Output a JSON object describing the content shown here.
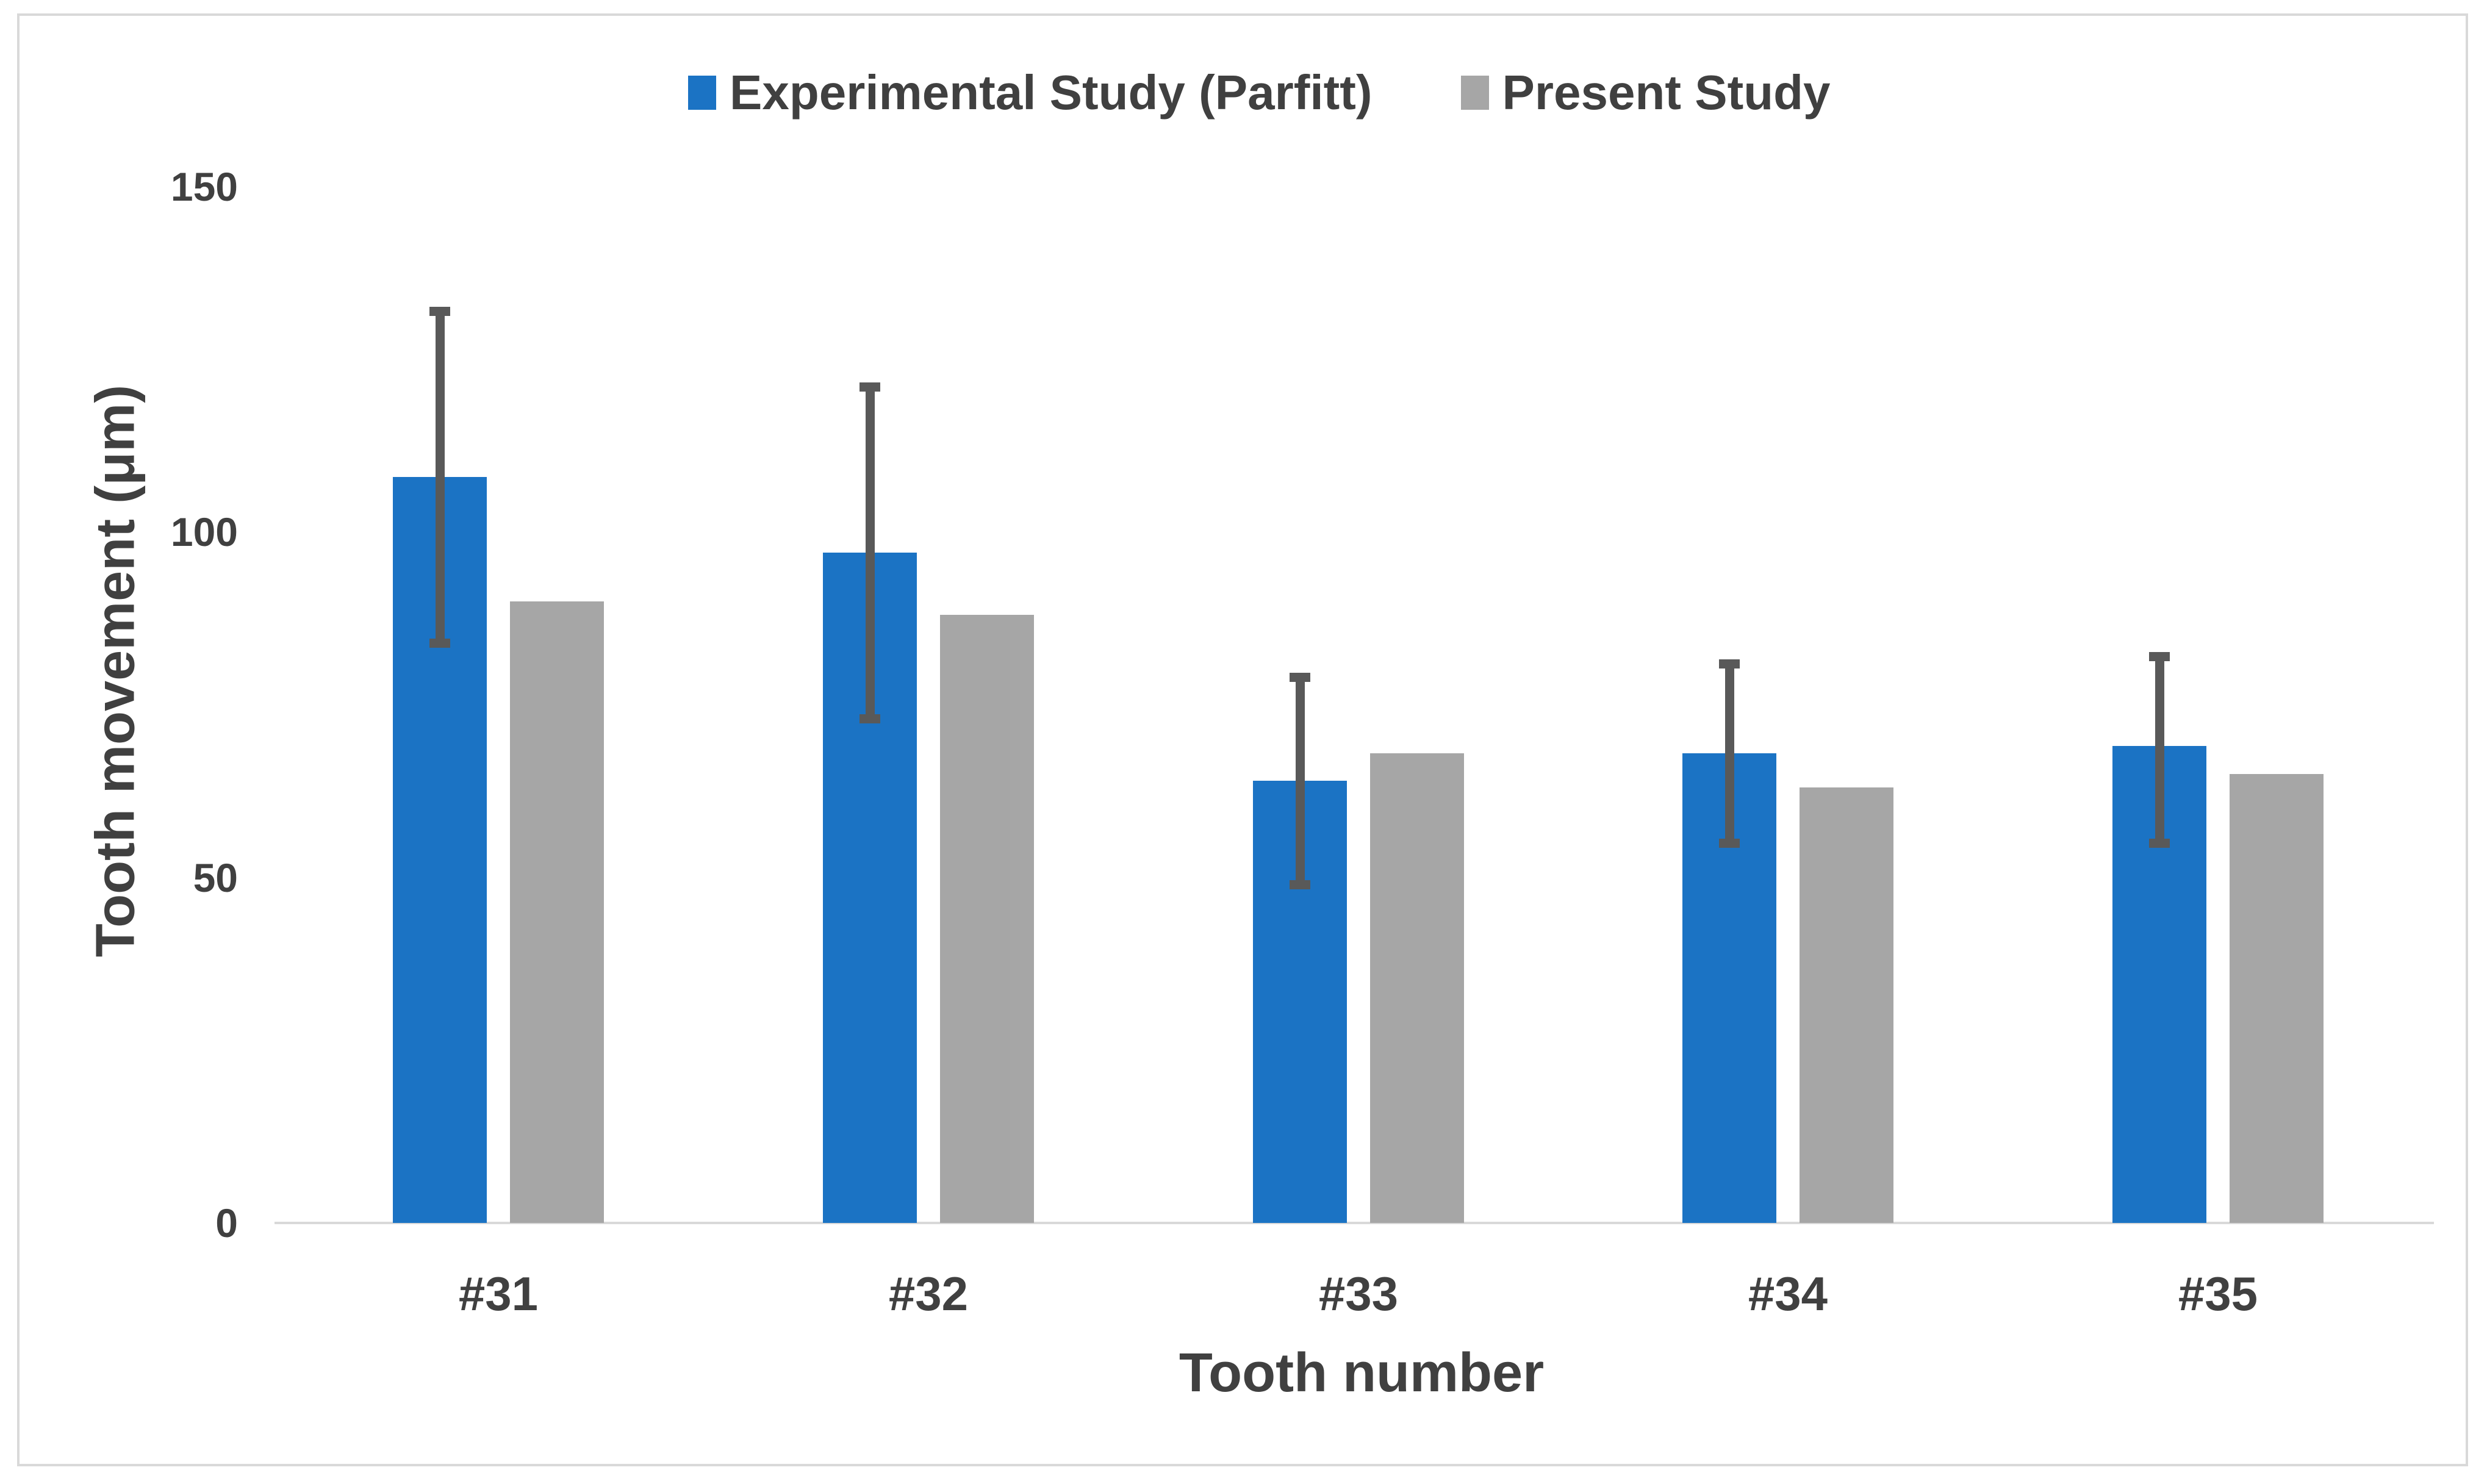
{
  "chart_data": {
    "type": "bar",
    "title": "",
    "categories": [
      "#31",
      "#32",
      "#33",
      "#34",
      "#35"
    ],
    "series": [
      {
        "name": "Experimental Study (Parfitt)",
        "color": "#1B73C4",
        "values": [
          108,
          97,
          64,
          68,
          69
        ],
        "error_low": [
          84,
          73,
          49,
          55,
          55
        ],
        "error_high": [
          132,
          121,
          79,
          81,
          82
        ]
      },
      {
        "name": "Present Study",
        "color": "#A6A6A6",
        "values": [
          90,
          88,
          68,
          63,
          65
        ]
      }
    ],
    "xlabel": "Tooth number",
    "ylabel": "Tooth movement (μm)",
    "yticks": [
      0,
      50,
      100,
      150
    ],
    "ylim": [
      0,
      160
    ],
    "grid": false,
    "legend_position": "top",
    "error_bar_color": "#595959"
  },
  "colors": {
    "background": "#FFFFFF",
    "text": "#404040",
    "axis_line": "#D9D9D9",
    "border": "#D9D9D9"
  }
}
